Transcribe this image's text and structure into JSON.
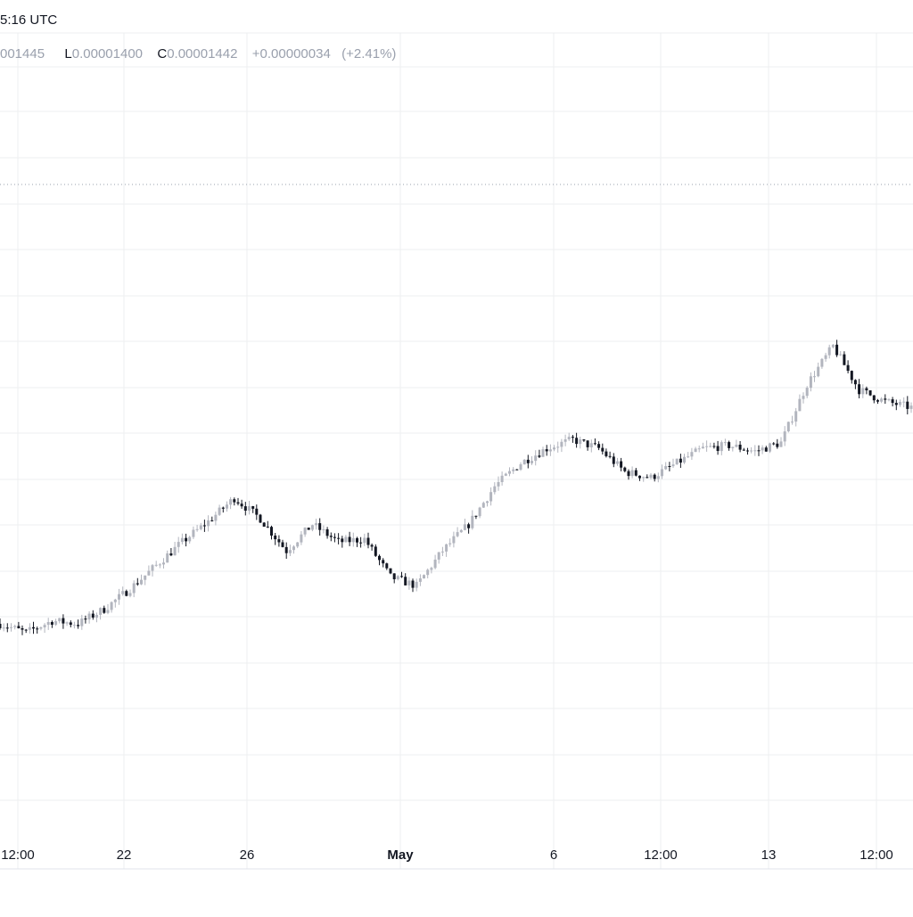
{
  "header": {
    "time_text": "5:16 UTC"
  },
  "ohlc": {
    "open_fragment": "001445",
    "low_key": "L",
    "low_value": "0.00001400",
    "close_key": "C",
    "close_value": "0.00001442",
    "change": "+0.00000034",
    "change_pct": "(+2.41%)"
  },
  "colors": {
    "up_candle": "#b2b5be",
    "down_candle": "#131722",
    "grid": "#eeeff1",
    "price_line": "#9aa0ad"
  },
  "chart_data": {
    "type": "candlestick",
    "title": "",
    "xlabel": "",
    "ylabel": "",
    "x_tick_labels": [
      "12:00",
      "22",
      "26",
      "May",
      "6",
      "12:00",
      "13",
      "12:00"
    ],
    "bold_tick": "May",
    "grid": true,
    "last_price_line": true,
    "trend_points_relative": [
      0.0,
      -0.03,
      0.01,
      0.0,
      0.05,
      0.12,
      0.2,
      0.28,
      0.35,
      0.43,
      0.36,
      0.25,
      0.34,
      0.28,
      0.29,
      0.16,
      0.13,
      0.25,
      0.34,
      0.47,
      0.55,
      0.6,
      0.63,
      0.6,
      0.52,
      0.5,
      0.55,
      0.6,
      0.61,
      0.59,
      0.62,
      0.82,
      0.95,
      0.8,
      0.76,
      0.74
    ]
  }
}
